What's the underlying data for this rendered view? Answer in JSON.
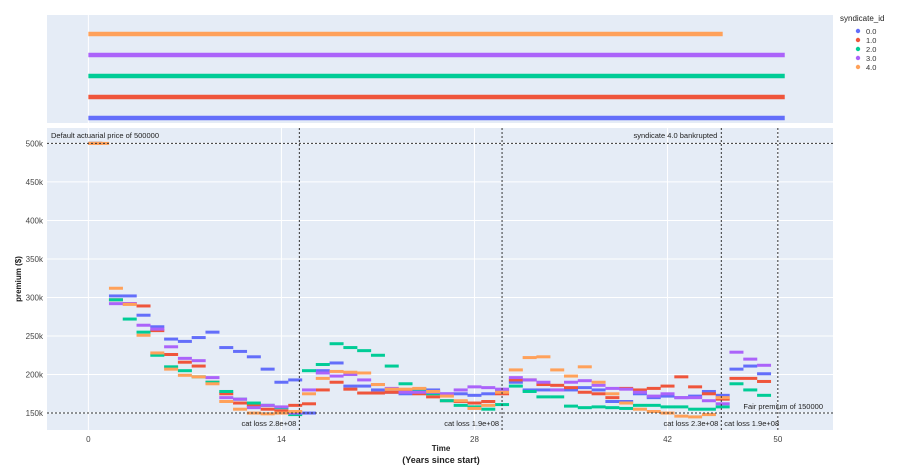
{
  "chart_data": [
    {
      "type": "timeline",
      "panel": "syndicate-activity",
      "series": [
        {
          "name": "4.0",
          "x": [
            0,
            46
          ],
          "color": "#FFA15A"
        },
        {
          "name": "3.0",
          "x": [
            0,
            50.5
          ],
          "color": "#AB63FA"
        },
        {
          "name": "2.0",
          "x": [
            0,
            50.5
          ],
          "color": "#00CC96"
        },
        {
          "name": "1.0",
          "x": [
            0,
            50.5
          ],
          "color": "#EF553B"
        },
        {
          "name": "0.0",
          "x": [
            0,
            50.5
          ],
          "color": "#636EFA"
        }
      ]
    },
    {
      "type": "scatter",
      "panel": "premium",
      "title": "",
      "xlabel": "Time",
      "xlabel_sub": "(Years since start)",
      "ylabel": "premium  ($)",
      "xlim": [
        -3,
        54
      ],
      "ylim": [
        128000,
        520000
      ],
      "x_ticks": [
        0,
        14,
        28,
        42,
        50
      ],
      "y_ticks": [
        {
          "value": 150000,
          "label": "150k"
        },
        {
          "value": 200000,
          "label": "200k"
        },
        {
          "value": 250000,
          "label": "250k"
        },
        {
          "value": 300000,
          "label": "300k"
        },
        {
          "value": 350000,
          "label": "350k"
        },
        {
          "value": 400000,
          "label": "400k"
        },
        {
          "value": 450000,
          "label": "450k"
        },
        {
          "value": 500000,
          "label": "500k"
        }
      ],
      "grid": true,
      "legend": {
        "title": "syndicate_id",
        "position": "top-right",
        "entries": [
          "0.0",
          "1.0",
          "2.0",
          "3.0",
          "4.0"
        ]
      },
      "series": [
        {
          "name": "0.0",
          "color": "#636EFA",
          "x": [
            0,
            2,
            3,
            4,
            5,
            6,
            7,
            8,
            9,
            10,
            11,
            12,
            13,
            14,
            15,
            16,
            17,
            18,
            19,
            20,
            21,
            22,
            23,
            24,
            25,
            26,
            27,
            28,
            29,
            30,
            31,
            32,
            33,
            34,
            35,
            36,
            37,
            38,
            39,
            40,
            41,
            42,
            43,
            44,
            45,
            46,
            47,
            48,
            49
          ],
          "y": [
            500000,
            302000,
            302000,
            277000,
            262000,
            246000,
            243000,
            248000,
            255000,
            235000,
            230000,
            223000,
            207000,
            190000,
            193000,
            150000,
            205000,
            215000,
            185000,
            185000,
            180000,
            177000,
            175000,
            180000,
            180000,
            175000,
            175000,
            173000,
            175000,
            180000,
            190000,
            180000,
            180000,
            180000,
            180000,
            183000,
            180000,
            165000,
            165000,
            175000,
            170000,
            172000,
            170000,
            172000,
            178000,
            173000,
            207000,
            211000,
            201000
          ]
        },
        {
          "name": "1.0",
          "color": "#EF553B",
          "x": [
            0,
            2,
            3,
            4,
            5,
            6,
            7,
            8,
            9,
            10,
            11,
            12,
            13,
            14,
            15,
            16,
            17,
            18,
            19,
            20,
            21,
            22,
            23,
            24,
            25,
            26,
            27,
            28,
            29,
            30,
            31,
            32,
            33,
            34,
            35,
            36,
            37,
            38,
            39,
            40,
            41,
            42,
            43,
            44,
            45,
            46,
            47,
            48,
            49
          ],
          "y": [
            500000,
            297000,
            292000,
            289000,
            257000,
            226000,
            216000,
            211000,
            190000,
            175000,
            163000,
            160000,
            155000,
            153000,
            160000,
            162000,
            180000,
            190000,
            181000,
            176000,
            176000,
            177000,
            180000,
            175000,
            171000,
            166000,
            165000,
            163000,
            165000,
            175000,
            193000,
            193000,
            187000,
            186000,
            183000,
            177000,
            175000,
            170000,
            182000,
            180000,
            182000,
            185000,
            197000,
            184000,
            175000,
            168000,
            195000,
            195000,
            191000
          ]
        },
        {
          "name": "2.0",
          "color": "#00CC96",
          "x": [
            0,
            2,
            3,
            4,
            5,
            6,
            7,
            8,
            9,
            10,
            11,
            12,
            13,
            14,
            15,
            16,
            17,
            18,
            19,
            20,
            21,
            22,
            23,
            24,
            25,
            26,
            27,
            28,
            29,
            30,
            31,
            32,
            33,
            34,
            35,
            36,
            37,
            38,
            39,
            40,
            41,
            42,
            43,
            44,
            45,
            46,
            47,
            48,
            49
          ],
          "y": [
            500000,
            297000,
            272000,
            255000,
            225000,
            210000,
            205000,
            197000,
            190000,
            178000,
            168000,
            163000,
            160000,
            157000,
            148000,
            205000,
            213000,
            240000,
            235000,
            231000,
            225000,
            211000,
            188000,
            181000,
            175000,
            166000,
            160000,
            158000,
            155000,
            161000,
            185000,
            178000,
            171000,
            171000,
            159000,
            157000,
            158000,
            157000,
            156000,
            160000,
            160000,
            158000,
            158000,
            155000,
            155000,
            158000,
            188000,
            180000,
            173000
          ]
        },
        {
          "name": "3.0",
          "color": "#AB63FA",
          "x": [
            0,
            2,
            3,
            4,
            5,
            6,
            7,
            8,
            9,
            10,
            11,
            12,
            13,
            14,
            15,
            16,
            17,
            18,
            19,
            20,
            21,
            22,
            23,
            24,
            25,
            26,
            27,
            28,
            29,
            30,
            31,
            32,
            33,
            34,
            35,
            36,
            37,
            38,
            39,
            40,
            41,
            42,
            43,
            44,
            45,
            46,
            47,
            48,
            49
          ],
          "y": [
            500000,
            292000,
            292000,
            264000,
            259000,
            236000,
            221000,
            218000,
            196000,
            170000,
            168000,
            157000,
            160000,
            158000,
            150000,
            180000,
            202000,
            198000,
            200000,
            193000,
            187000,
            182000,
            177000,
            177000,
            177000,
            175000,
            180000,
            184000,
            183000,
            181000,
            196000,
            193000,
            190000,
            180000,
            190000,
            192000,
            186000,
            182000,
            181000,
            177000,
            172000,
            175000,
            170000,
            170000,
            166000,
            162000,
            229000,
            220000,
            212000
          ]
        },
        {
          "name": "4.0",
          "color": "#FFA15A",
          "x": [
            0,
            0.5,
            1,
            2,
            3,
            4,
            5,
            6,
            7,
            8,
            9,
            10,
            11,
            12,
            13,
            14,
            15,
            16,
            17,
            18,
            19,
            20,
            21,
            22,
            23,
            24,
            25,
            26,
            27,
            28,
            29,
            30,
            31,
            32,
            33,
            34,
            35,
            36,
            37,
            38,
            39,
            40,
            41,
            42,
            43,
            44,
            45,
            46
          ],
          "y": [
            500000,
            500000,
            500000,
            312000,
            291000,
            251000,
            228000,
            207000,
            199000,
            197000,
            188000,
            165000,
            155000,
            150000,
            149000,
            150000,
            152000,
            175000,
            195000,
            204000,
            203000,
            202000,
            187000,
            181000,
            181000,
            182000,
            178000,
            172000,
            166000,
            156000,
            160000,
            177000,
            206000,
            222000,
            223000,
            206000,
            198000,
            210000,
            190000,
            175000,
            163000,
            155000,
            152000,
            150000,
            146000,
            145000,
            148000,
            170000
          ]
        }
      ],
      "vlines": [
        15.3,
        30,
        45.9,
        50
      ],
      "hlines": [
        500000,
        150000
      ],
      "annotations": [
        {
          "text": "Default actuarial price of 500000"
        },
        {
          "text": "syndicate 4.0 bankrupted"
        },
        {
          "text": "Fair premium of 150000"
        },
        {
          "text": "cat loss 2.8e+08"
        },
        {
          "text": "cat loss 1.9e+08"
        },
        {
          "text": "cat loss 2.3e+08"
        },
        {
          "text": "cat loss 1.9e+08"
        }
      ]
    }
  ]
}
